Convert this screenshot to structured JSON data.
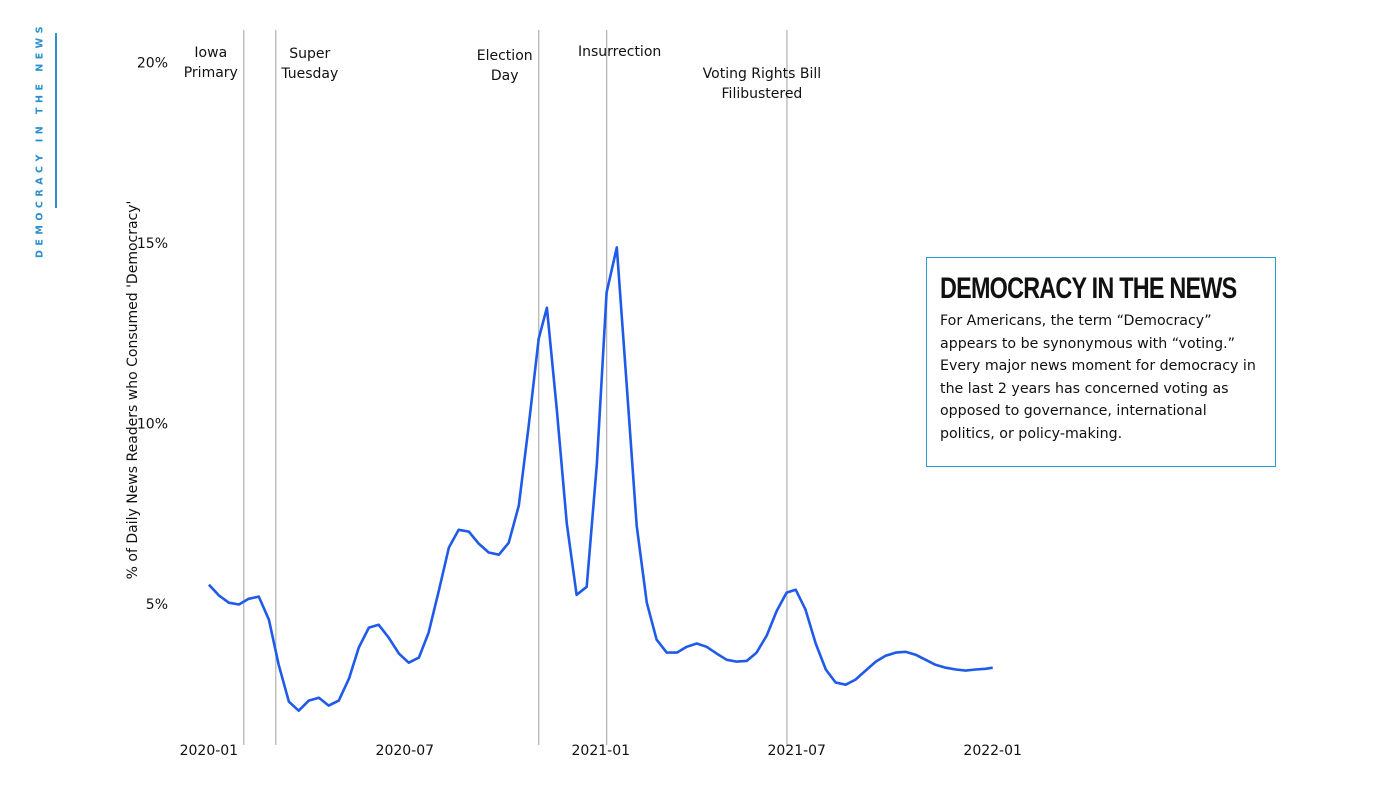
{
  "sidebar": "DEMOCRACY IN THE NEWS",
  "chart_data": {
    "type": "line",
    "y_label": "% of Daily News Readers who Consumed 'Democracy'",
    "xlim": [
      -2.2,
      26
    ],
    "xticks": [
      {
        "value": 0,
        "label": "2020-01"
      },
      {
        "value": 6,
        "label": "2020-07"
      },
      {
        "value": 12,
        "label": "2021-01"
      },
      {
        "value": 18,
        "label": "2021-07"
      },
      {
        "value": 24,
        "label": "2022-01"
      }
    ],
    "ylim": [
      1.1,
      20.9
    ],
    "yticks": [
      {
        "value": 5,
        "label": "5%"
      },
      {
        "value": 10,
        "label": "10%"
      },
      {
        "value": 15,
        "label": "15%"
      },
      {
        "value": 20,
        "label": "20%"
      }
    ],
    "grid": false,
    "annotations": [
      {
        "x": 1.07,
        "label": [
          "Iowa",
          "Primary"
        ]
      },
      {
        "x": 2.05,
        "label": [
          "Super",
          "Tuesday"
        ]
      },
      {
        "x": 10.1,
        "label": [
          "Election",
          "Day"
        ]
      },
      {
        "x": 12.18,
        "label": [
          "Insurrection"
        ]
      },
      {
        "x": 17.7,
        "label": [
          "Voting Rights Bill",
          "Filibustered"
        ]
      }
    ],
    "x": [
      0,
      0.31,
      0.61,
      0.92,
      1.22,
      1.53,
      1.84,
      2.14,
      2.45,
      2.75,
      3.06,
      3.37,
      3.67,
      3.98,
      4.29,
      4.59,
      4.9,
      5.2,
      5.51,
      5.82,
      6.12,
      6.43,
      6.73,
      7.04,
      7.35,
      7.65,
      7.96,
      8.26,
      8.57,
      8.88,
      9.18,
      9.49,
      9.79,
      10.1,
      10.35,
      10.65,
      10.96,
      11.26,
      11.57,
      11.88,
      12.18,
      12.49,
      12.79,
      13.1,
      13.41,
      13.71,
      14.02,
      14.33,
      14.63,
      14.94,
      15.24,
      15.55,
      15.86,
      16.16,
      16.47,
      16.77,
      17.08,
      17.39,
      17.69,
      17.97,
      18.27,
      18.58,
      18.89,
      19.19,
      19.5,
      19.8,
      20.11,
      20.42,
      20.72,
      21.03,
      21.33,
      21.64,
      21.95,
      22.25,
      22.56,
      22.87,
      23.17,
      23.48,
      23.78,
      24
    ],
    "series": [
      {
        "name": "Democracy",
        "color": "#1f5ae8",
        "values": [
          5.54,
          5.24,
          5.04,
          4.99,
          5.15,
          5.21,
          4.57,
          3.32,
          2.3,
          2.05,
          2.33,
          2.41,
          2.19,
          2.33,
          2.94,
          3.8,
          4.35,
          4.43,
          4.07,
          3.63,
          3.38,
          3.52,
          4.21,
          5.37,
          6.57,
          7.06,
          7.01,
          6.68,
          6.43,
          6.37,
          6.7,
          7.73,
          9.92,
          12.35,
          13.21,
          10.42,
          7.23,
          5.26,
          5.48,
          8.86,
          13.63,
          14.88,
          11.11,
          7.17,
          5.04,
          4.02,
          3.66,
          3.66,
          3.82,
          3.91,
          3.82,
          3.63,
          3.46,
          3.41,
          3.43,
          3.66,
          4.13,
          4.82,
          5.32,
          5.4,
          4.85,
          3.91,
          3.19,
          2.83,
          2.77,
          2.91,
          3.16,
          3.41,
          3.57,
          3.66,
          3.68,
          3.6,
          3.46,
          3.32,
          3.24,
          3.19,
          3.16,
          3.19,
          3.21,
          3.24
        ]
      }
    ]
  },
  "info_box": {
    "title": "DEMOCRACY IN THE NEWS",
    "body": "For Americans, the term “Democracy” appears to be synonymous with “voting.” Every major news moment for democracy in the last 2 years has concerned voting as opposed to governance, international politics, or policy-making."
  }
}
